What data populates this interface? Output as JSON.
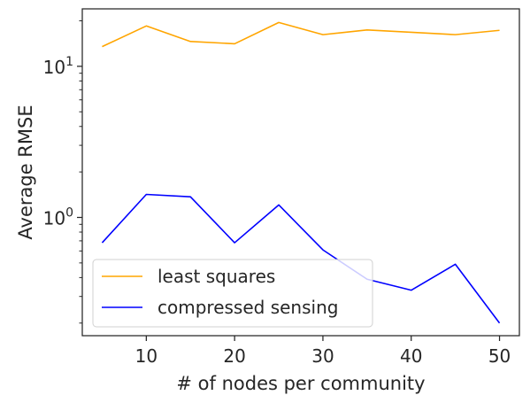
{
  "chart_data": {
    "type": "line",
    "x": [
      5,
      10,
      15,
      20,
      25,
      30,
      35,
      40,
      45,
      50
    ],
    "series": [
      {
        "name": "least squares",
        "color": "#FFA500",
        "values": [
          13.5,
          18.5,
          14.6,
          14.1,
          19.5,
          16.2,
          17.4,
          16.8,
          16.2,
          17.3
        ]
      },
      {
        "name": "compressed sensing",
        "color": "#0000FF",
        "values": [
          0.68,
          1.42,
          1.37,
          0.68,
          1.21,
          0.61,
          0.39,
          0.33,
          0.49,
          0.2
        ]
      }
    ],
    "xlabel": "# of nodes per community",
    "ylabel": "Average RMSE",
    "xlim": [
      2.75,
      52.25
    ],
    "ylim": [
      0.165,
      24
    ],
    "yscale": "log",
    "xticks": [
      10,
      20,
      30,
      40,
      50
    ],
    "xtick_labels": [
      "10",
      "20",
      "30",
      "40",
      "50"
    ],
    "yticks": [
      {
        "value": 1,
        "base": "10",
        "exp": "0"
      },
      {
        "value": 10,
        "base": "10",
        "exp": "1"
      }
    ],
    "grid": false,
    "legend": "lower-left",
    "title": ""
  }
}
